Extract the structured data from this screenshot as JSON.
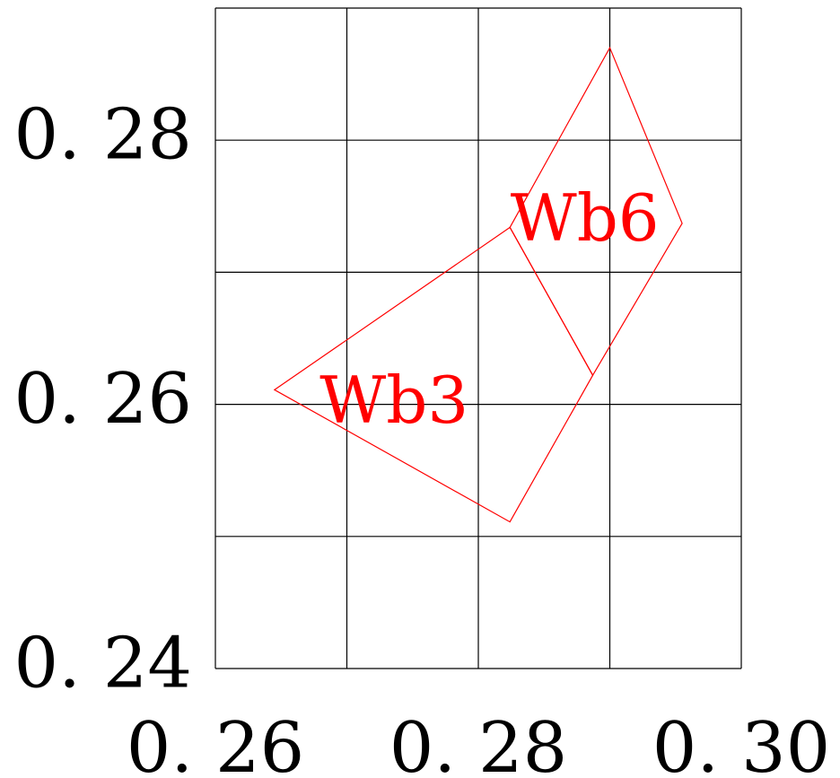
{
  "chart_data": {
    "type": "scatter",
    "title": "",
    "xlabel": "",
    "ylabel": "",
    "xlim": [
      0.26,
      0.3
    ],
    "ylim": [
      0.24,
      0.29
    ],
    "grid": true,
    "x_ticks": [
      0.26,
      0.28,
      0.3
    ],
    "x_tick_labels": [
      "0. 26",
      "0. 28",
      "0. 30"
    ],
    "y_ticks": [
      0.24,
      0.26,
      0.28
    ],
    "y_tick_labels": [
      "0. 24",
      "0. 26",
      "0. 28"
    ],
    "grid_x": [
      0.26,
      0.27,
      0.28,
      0.29,
      0.3
    ],
    "grid_y": [
      0.24,
      0.25,
      0.26,
      0.27,
      0.28,
      0.29
    ],
    "regions": [
      {
        "label": "Wb3",
        "color": "#ff0000",
        "points": [
          [
            0.2645,
            0.2611
          ],
          [
            0.2824,
            0.2734
          ],
          [
            0.2887,
            0.2622
          ],
          [
            0.2824,
            0.2511
          ]
        ]
      },
      {
        "label": "Wb6",
        "color": "#ff0000",
        "points": [
          [
            0.2824,
            0.2734
          ],
          [
            0.29,
            0.287
          ],
          [
            0.2955,
            0.2737
          ],
          [
            0.2887,
            0.2622
          ]
        ]
      }
    ],
    "annotations": [
      {
        "text": "Wb3",
        "x": 0.2736,
        "y": 0.2599,
        "color": "#ff0000"
      },
      {
        "text": "Wb6",
        "x": 0.2881,
        "y": 0.2737,
        "color": "#ff0000"
      }
    ]
  }
}
